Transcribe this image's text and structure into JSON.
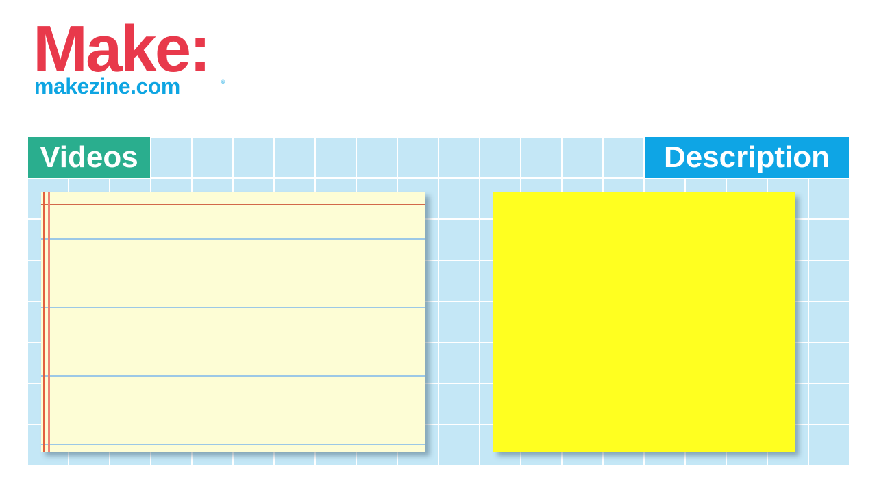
{
  "logo": {
    "wordmark": "Make:",
    "site": "makezine.com",
    "registered": "®"
  },
  "tags": {
    "videos": "Videos",
    "description": "Description"
  },
  "colors": {
    "brand_red": "#e8394b",
    "brand_blue": "#0ea5e2",
    "videos_tag": "#2aae8e",
    "description_tag": "#0ea5e5",
    "grid_fill": "#c4e7f6",
    "paper_fill": "#fdfdd5",
    "sticky_fill": "#ffff20"
  }
}
